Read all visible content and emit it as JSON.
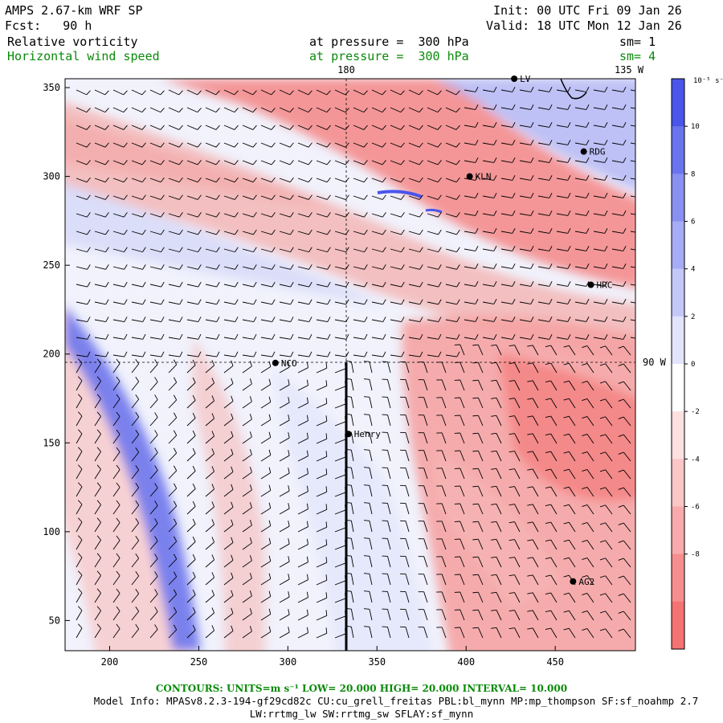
{
  "header": {
    "title": "AMPS 2.67-km WRF SP",
    "forecast": "Fcst:   90 h",
    "init": "Init: 00 UTC Fri 09 Jan 26",
    "valid": "Valid: 18 UTC Mon 12 Jan 26",
    "field1": {
      "name": "Relative vorticity",
      "level": "at pressure =  300 hPa",
      "sm": "sm= 1"
    },
    "field2": {
      "name": "Horizontal wind speed",
      "level": "at pressure =  300 hPa",
      "sm": "sm= 4"
    }
  },
  "axes": {
    "x_ticks": [
      "200",
      "250",
      "300",
      "350",
      "400",
      "450"
    ],
    "y_ticks": [
      "50",
      "100",
      "150",
      "200",
      "250",
      "300",
      "350"
    ],
    "x_range": [
      175,
      495
    ],
    "y_range": [
      33,
      355
    ],
    "top_labels": [
      "180",
      "135 W"
    ],
    "right_label": "90 W"
  },
  "stations": [
    {
      "name": "RDG",
      "x": 466,
      "y": 314
    },
    {
      "name": "KLN",
      "x": 402,
      "y": 300
    },
    {
      "name": "HRC",
      "x": 470,
      "y": 239
    },
    {
      "name": "NCO",
      "x": 293,
      "y": 195
    },
    {
      "name": "Henry",
      "x": 334,
      "y": 155
    },
    {
      "name": "AG2",
      "x": 460,
      "y": 72
    },
    {
      "name": "LV",
      "x": 427,
      "y": 355
    }
  ],
  "colorbar": {
    "unit": "10⁻⁵ s⁻¹",
    "labels": [
      "10",
      "8",
      "6",
      "4",
      "2",
      "0",
      "-2",
      "-4",
      "-6",
      "-8"
    ],
    "colors": [
      "#4a55ea",
      "#6a74ee",
      "#8890f1",
      "#a6acf5",
      "#c4c8f9",
      "#e2e4fc",
      "#ffffff",
      "#fde0e0",
      "#fbc6c6",
      "#f9aaaa",
      "#f78e8e",
      "#f57272"
    ]
  },
  "footer": {
    "contours": "CONTOURS:  UNITS=m s⁻¹  LOW=  20.000      HIGH=  20.000      INTERVAL=   10.000",
    "model_info": "Model Info: MPASv8.2.3-194-gf29cd82c CU:cu_grell_freitas PBL:bl_mynn MP:mp_thompson SF:sf_noahmp 2.7",
    "model_info2": "LW:rrtmg_lw SW:rrtmg_sw SFLAY:sf_mynn"
  }
}
